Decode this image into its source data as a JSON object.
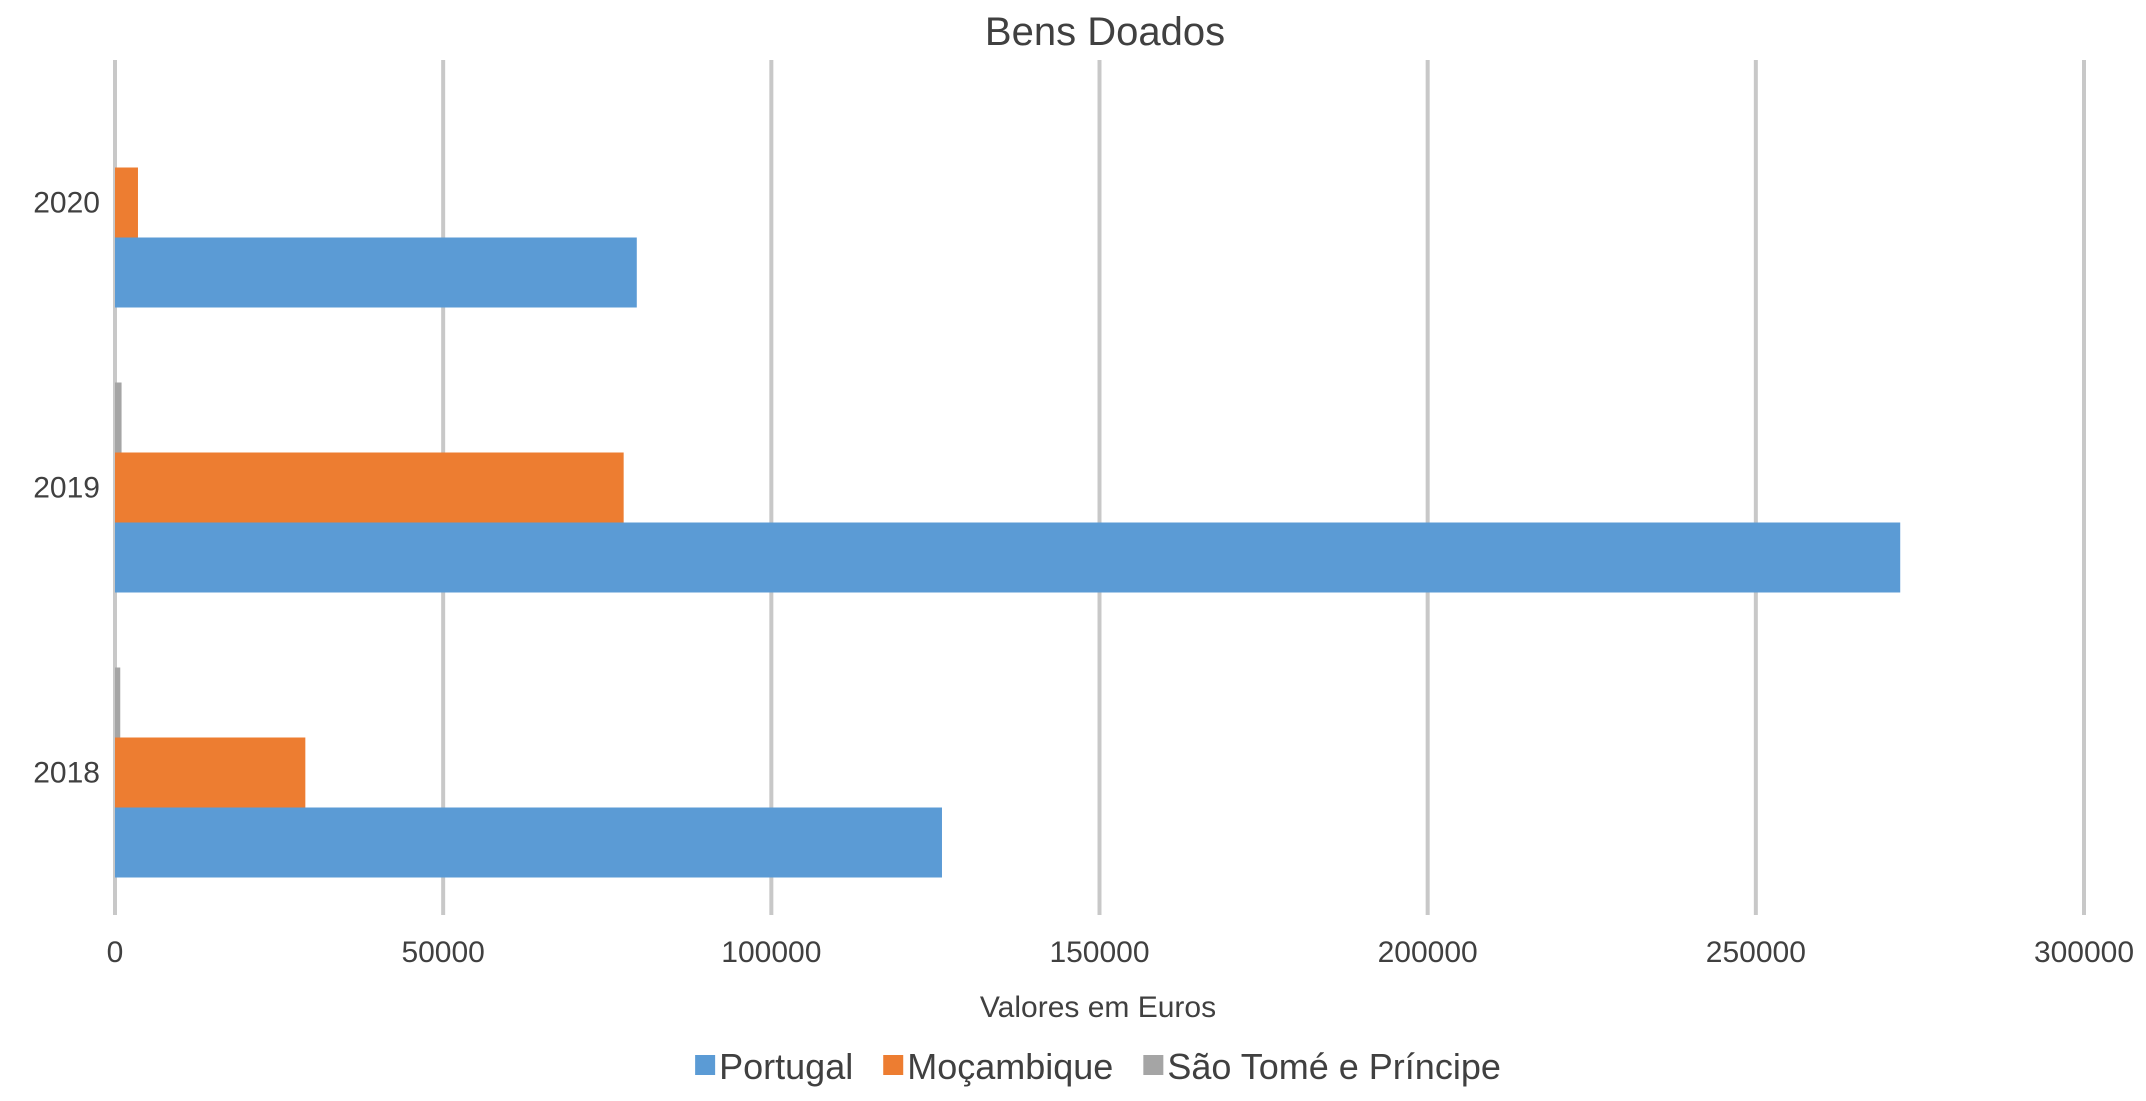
{
  "chart_data": {
    "type": "bar",
    "orientation": "horizontal",
    "title": "Bens Doados",
    "xlabel": "Valores em Euros",
    "ylabel": "",
    "categories": [
      "2020",
      "2019",
      "2018"
    ],
    "series": [
      {
        "name": "Portugal",
        "values": [
          79500,
          272000,
          126000
        ],
        "color": "#5b9bd5"
      },
      {
        "name": "Moçambique",
        "values": [
          3500,
          77500,
          29000
        ],
        "color": "#ed7d31"
      },
      {
        "name": "São Tomé e Príncipe",
        "values": [
          0,
          1000,
          800
        ],
        "color": "#a5a5a5"
      }
    ],
    "xlim": [
      0,
      300000
    ],
    "xticks": [
      "0",
      "50000",
      "100000",
      "150000",
      "200000",
      "250000",
      "300000"
    ],
    "grid": true,
    "legend": "bottom"
  }
}
